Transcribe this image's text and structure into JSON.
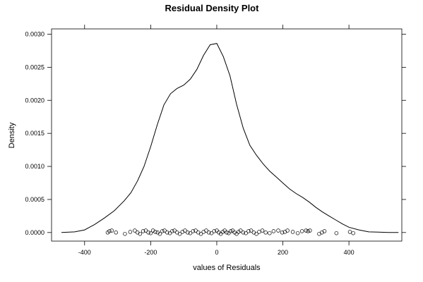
{
  "chart_data": {
    "type": "line",
    "title": "Residual Density Plot",
    "xlabel": "values of Residuals",
    "ylabel": "Density",
    "xlim": [
      -500,
      560
    ],
    "ylim": [
      -0.00013,
      0.00308
    ],
    "x_ticks": [
      -400,
      -200,
      0,
      200,
      400
    ],
    "x_tick_labels": [
      "-400",
      "-200",
      "0",
      "200",
      "400"
    ],
    "y_ticks": [
      0.0,
      0.0005,
      0.001,
      0.0015,
      0.002,
      0.0025,
      0.003
    ],
    "y_tick_labels": [
      "0.0000",
      "0.0005",
      "0.0010",
      "0.0015",
      "0.0020",
      "0.0025",
      "0.0030"
    ],
    "grid": false,
    "legend": "none",
    "colors": {
      "line": "#000000",
      "points": "#000000",
      "background": "#ffffff"
    },
    "series": [
      {
        "type": "line",
        "x": [
          -470,
          -430,
          -400,
          -370,
          -340,
          -310,
          -280,
          -260,
          -240,
          -220,
          -200,
          -180,
          -160,
          -140,
          -120,
          -100,
          -80,
          -60,
          -40,
          -20,
          0,
          20,
          40,
          60,
          80,
          100,
          120,
          140,
          160,
          180,
          200,
          220,
          240,
          260,
          280,
          300,
          320,
          340,
          360,
          380,
          400,
          430,
          460,
          490,
          520,
          550
        ],
        "y": [
          0.0,
          1e-05,
          4e-05,
          0.00012,
          0.00022,
          0.00033,
          0.00048,
          0.0006,
          0.00078,
          0.001,
          0.0013,
          0.00163,
          0.00193,
          0.0021,
          0.00218,
          0.00223,
          0.00232,
          0.00247,
          0.00268,
          0.00284,
          0.00286,
          0.00266,
          0.00237,
          0.00194,
          0.00158,
          0.00132,
          0.00117,
          0.00104,
          0.00093,
          0.00084,
          0.00075,
          0.00066,
          0.00059,
          0.00053,
          0.00046,
          0.00038,
          0.00031,
          0.00025,
          0.00019,
          0.00013,
          8e-05,
          4e-05,
          1e-05,
          5e-06,
          0.0,
          0.0
        ]
      },
      {
        "type": "scatter",
        "marker": "open-circle",
        "x": [
          -330,
          -325,
          -318,
          -305,
          -278,
          -262,
          -248,
          -240,
          -232,
          -223,
          -215,
          -207,
          -200,
          -193,
          -186,
          -179,
          -172,
          -165,
          -158,
          -150,
          -142,
          -135,
          -128,
          -120,
          -112,
          -104,
          -96,
          -88,
          -80,
          -72,
          -64,
          -56,
          -48,
          -40,
          -32,
          -24,
          -16,
          -8,
          0,
          6,
          12,
          18,
          24,
          30,
          36,
          42,
          48,
          54,
          60,
          66,
          72,
          80,
          88,
          96,
          104,
          112,
          120,
          128,
          138,
          148,
          160,
          172,
          186,
          198,
          206,
          214,
          230,
          245,
          258,
          270,
          276,
          282,
          310,
          318,
          326,
          362,
          403,
          413
        ],
        "y": [
          0,
          2e-05,
          3e-05,
          0,
          -2e-05,
          1e-05,
          3e-05,
          0,
          -2e-05,
          2e-05,
          3e-05,
          0,
          -1e-05,
          3e-05,
          1e-05,
          0,
          -2e-05,
          2e-05,
          3e-05,
          0,
          -1e-05,
          2e-05,
          3e-05,
          0,
          -2e-05,
          1e-05,
          3e-05,
          0,
          -1e-05,
          2e-05,
          3e-05,
          0,
          -2e-05,
          1e-05,
          3e-05,
          0,
          -1e-05,
          2e-05,
          3e-05,
          0,
          -2e-05,
          1e-05,
          3e-05,
          0,
          -1e-05,
          2e-05,
          3e-05,
          0,
          -2e-05,
          1e-05,
          3e-05,
          0,
          -1e-05,
          2e-05,
          3e-05,
          0,
          -2e-05,
          1e-05,
          3e-05,
          0,
          -1e-05,
          2e-05,
          3e-05,
          0,
          1e-05,
          3e-05,
          1e-05,
          -1e-05,
          2e-05,
          3e-05,
          2e-05,
          3e-05,
          -2e-05,
          0,
          2e-05,
          -1e-05,
          1e-05,
          -1e-05
        ]
      }
    ]
  }
}
